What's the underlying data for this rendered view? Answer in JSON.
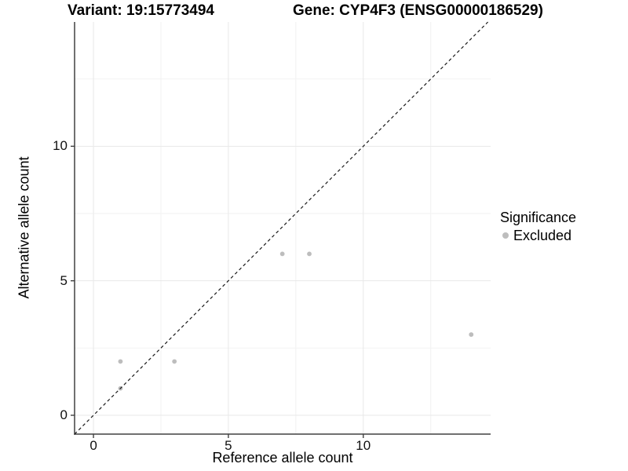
{
  "chart_data": {
    "type": "scatter",
    "title_left": "Variant: 19:15773494",
    "title_right": "Gene: CYP4F3 (ENSG00000186529)",
    "xlabel": "Reference allele count",
    "ylabel": "Alternative allele count",
    "x_ticks": [
      0,
      5,
      10
    ],
    "y_ticks": [
      0,
      5,
      10
    ],
    "xlim": [
      0,
      14
    ],
    "ylim": [
      0,
      14
    ],
    "grid": "major and minor gridlines, light gray on white",
    "identity_line": {
      "equation": "y = x",
      "style": "dashed",
      "color": "#1a1a1a"
    },
    "series": [
      {
        "name": "Excluded",
        "color": "#bdbdbd",
        "points": [
          {
            "x": 1,
            "y": 1
          },
          {
            "x": 1,
            "y": 2
          },
          {
            "x": 3,
            "y": 2
          },
          {
            "x": 7,
            "y": 6
          },
          {
            "x": 8,
            "y": 6
          },
          {
            "x": 14,
            "y": 3
          }
        ]
      }
    ],
    "legend": {
      "title": "Significance",
      "position": "right",
      "entries": [
        {
          "label": "Excluded",
          "color": "#bdbdbd",
          "marker": "circle"
        }
      ]
    },
    "colors": {
      "point": "#bdbdbd",
      "axis_line": "#404040",
      "grid_major": "#e8e8e8",
      "grid_minor": "#f2f2f2",
      "text": "#000000"
    }
  }
}
